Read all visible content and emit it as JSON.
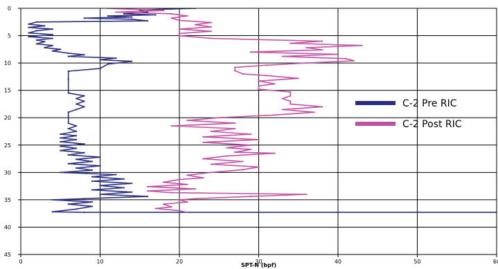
{
  "chart_data": {
    "type": "line",
    "xlabel": "SPT-N (bpf)",
    "ylabel": "",
    "xlim": [
      0,
      60
    ],
    "ylim": [
      0,
      45
    ],
    "y_inverted": true,
    "x_ticks": [
      0,
      10,
      20,
      30,
      40,
      50,
      60
    ],
    "y_ticks": [
      0,
      5,
      10,
      15,
      20,
      25,
      30,
      35,
      40,
      45
    ],
    "grid": true,
    "legend_position": "right",
    "series": [
      {
        "name": "C-2 Pre RIC",
        "color": "#2b2f7f",
        "points": [
          [
            22,
            0
          ],
          [
            15,
            0.3
          ],
          [
            16,
            0.7
          ],
          [
            13,
            1
          ],
          [
            17,
            1.2
          ],
          [
            11,
            1.4
          ],
          [
            14,
            1.6
          ],
          [
            8,
            1.8
          ],
          [
            14,
            2
          ],
          [
            16,
            2.3
          ],
          [
            2,
            2.5
          ],
          [
            1,
            2.9
          ],
          [
            3,
            3.2
          ],
          [
            1,
            3.5
          ],
          [
            4,
            3.8
          ],
          [
            2,
            4.1
          ],
          [
            1,
            4.5
          ],
          [
            4,
            4.8
          ],
          [
            1,
            5.2
          ],
          [
            4,
            5.5
          ],
          [
            2,
            5.8
          ],
          [
            3,
            6.1
          ],
          [
            2,
            6.5
          ],
          [
            4,
            6.8
          ],
          [
            3,
            7.2
          ],
          [
            5,
            7.5
          ],
          [
            4,
            7.8
          ],
          [
            6,
            8.2
          ],
          [
            8,
            8.5
          ],
          [
            6,
            8.8
          ],
          [
            12,
            9.1
          ],
          [
            10,
            9.4
          ],
          [
            14,
            9.7
          ],
          [
            11,
            10.2
          ],
          [
            10,
            11
          ],
          [
            6,
            11.5
          ],
          [
            6,
            13
          ],
          [
            6,
            15.5
          ],
          [
            8,
            16
          ],
          [
            7,
            16.5
          ],
          [
            8,
            17
          ],
          [
            7,
            17.5
          ],
          [
            8,
            18
          ],
          [
            7,
            18.5
          ],
          [
            6,
            19
          ],
          [
            6,
            21
          ],
          [
            7,
            21.5
          ],
          [
            6,
            22
          ],
          [
            7,
            22.5
          ],
          [
            5,
            23
          ],
          [
            7,
            23.3
          ],
          [
            5,
            23.7
          ],
          [
            7,
            24
          ],
          [
            5,
            24.4
          ],
          [
            8,
            24.8
          ],
          [
            5,
            25.2
          ],
          [
            7,
            25.6
          ],
          [
            5,
            26
          ],
          [
            8,
            26.4
          ],
          [
            6,
            26.8
          ],
          [
            10,
            27.2
          ],
          [
            7,
            27.6
          ],
          [
            9,
            28
          ],
          [
            6,
            28.4
          ],
          [
            10,
            28.8
          ],
          [
            7,
            29.2
          ],
          [
            9,
            29.6
          ],
          [
            5,
            30
          ],
          [
            12,
            30.4
          ],
          [
            9,
            30.8
          ],
          [
            13,
            31.2
          ],
          [
            9,
            31.6
          ],
          [
            14,
            32
          ],
          [
            10,
            32.4
          ],
          [
            13,
            32.8
          ],
          [
            9,
            33.2
          ],
          [
            14,
            33.6
          ],
          [
            10,
            34
          ],
          [
            16,
            34.4
          ],
          [
            8,
            34.8
          ],
          [
            4,
            35
          ],
          [
            9,
            35.4
          ],
          [
            6,
            35.8
          ],
          [
            9,
            36.2
          ],
          [
            7,
            36.7
          ],
          [
            4,
            37.2
          ],
          [
            8,
            37.3
          ],
          [
            60,
            37.3
          ]
        ]
      },
      {
        "name": "C-2 Post RIC",
        "color": "#c150a4",
        "points": [
          [
            11,
            0
          ],
          [
            18,
            0.4
          ],
          [
            12,
            0.7
          ],
          [
            19,
            1
          ],
          [
            21,
            1.4
          ],
          [
            19,
            1.8
          ],
          [
            20,
            2.2
          ],
          [
            24,
            2.6
          ],
          [
            22,
            3
          ],
          [
            24,
            3.4
          ],
          [
            20,
            3.8
          ],
          [
            24,
            4.2
          ],
          [
            20,
            4.6
          ],
          [
            20,
            5
          ],
          [
            24,
            5.5
          ],
          [
            38,
            6
          ],
          [
            34,
            6.4
          ],
          [
            43,
            6.8
          ],
          [
            36,
            7.2
          ],
          [
            38,
            7.6
          ],
          [
            29,
            8
          ],
          [
            40,
            8.4
          ],
          [
            33,
            8.8
          ],
          [
            41,
            9.2
          ],
          [
            42,
            9.6
          ],
          [
            36,
            10
          ],
          [
            31,
            10.4
          ],
          [
            27,
            10.8
          ],
          [
            27,
            11.4
          ],
          [
            28,
            12
          ],
          [
            31,
            12.3
          ],
          [
            35,
            12.8
          ],
          [
            30,
            13.3
          ],
          [
            32,
            13.8
          ],
          [
            30,
            14.2
          ],
          [
            30,
            14.8
          ],
          [
            34,
            15.3
          ],
          [
            34,
            16
          ],
          [
            33,
            16.5
          ],
          [
            34,
            17
          ],
          [
            34,
            17.5
          ],
          [
            38,
            18
          ],
          [
            33,
            18.5
          ],
          [
            37,
            19
          ],
          [
            32,
            19.5
          ],
          [
            25,
            20
          ],
          [
            21,
            20.5
          ],
          [
            27,
            21
          ],
          [
            19,
            21.5
          ],
          [
            27,
            22
          ],
          [
            24,
            22.5
          ],
          [
            29,
            23
          ],
          [
            23,
            23.5
          ],
          [
            30,
            24
          ],
          [
            23,
            24.5
          ],
          [
            29,
            25
          ],
          [
            26,
            25.5
          ],
          [
            29,
            25.8
          ],
          [
            27,
            26.3
          ],
          [
            32,
            26.5
          ],
          [
            26,
            27
          ],
          [
            23,
            27.5
          ],
          [
            28,
            28
          ],
          [
            24,
            28.5
          ],
          [
            30,
            29
          ],
          [
            28,
            29.5
          ],
          [
            24,
            30
          ],
          [
            21,
            30.5
          ],
          [
            23,
            31
          ],
          [
            20,
            31.3
          ],
          [
            18,
            31.8
          ],
          [
            21,
            32.2
          ],
          [
            16,
            32.6
          ],
          [
            22,
            33
          ],
          [
            16,
            33.4
          ],
          [
            19,
            33.7
          ],
          [
            36,
            34
          ],
          [
            29,
            34.4
          ],
          [
            22,
            34.8
          ],
          [
            20,
            35
          ],
          [
            21,
            35.4
          ],
          [
            18,
            35.8
          ],
          [
            19,
            36.3
          ],
          [
            17,
            36.6
          ],
          [
            20,
            37
          ],
          [
            21,
            37.3
          ]
        ]
      }
    ]
  }
}
